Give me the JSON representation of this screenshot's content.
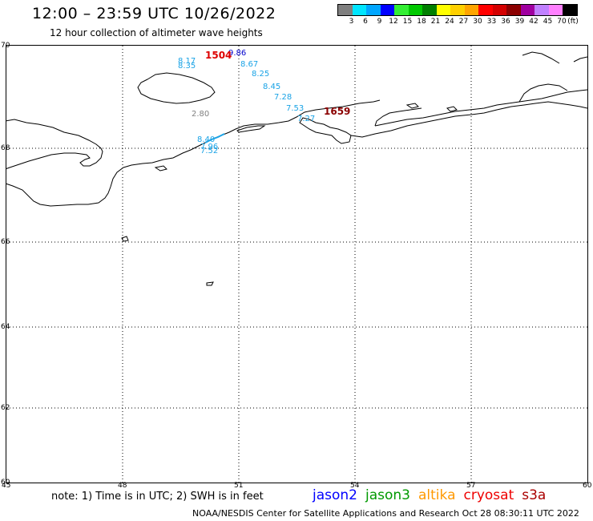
{
  "header": {
    "title": "12:00 – 23:59 UTC 10/26/2022",
    "subtitle": "12 hour collection of altimeter wave heights"
  },
  "legend": {
    "unit": "(ft)",
    "ticks": [
      "3",
      "6",
      "9",
      "12",
      "15",
      "18",
      "21",
      "24",
      "27",
      "30",
      "33",
      "36",
      "39",
      "42",
      "45",
      "70"
    ],
    "colors": [
      "#7f7f7f",
      "#00e5ff",
      "#00a6ff",
      "#0000ff",
      "#33ee33",
      "#00c800",
      "#007f00",
      "#ffff00",
      "#ffd000",
      "#ffa500",
      "#ff0000",
      "#d40000",
      "#8b0000",
      "#a000a0",
      "#c080ff",
      "#ff80ff",
      "#000000"
    ]
  },
  "map": {
    "lat_labels": [
      "70",
      "68",
      "66",
      "64",
      "62",
      "60"
    ],
    "lon_labels": [
      "45",
      "48",
      "51",
      "54",
      "57",
      "60"
    ],
    "observations": [
      {
        "label": "8.17",
        "color": "#1aa3e6"
      },
      {
        "label": "8.35",
        "color": "#1aa3e6"
      },
      {
        "label": "9.86",
        "color": "#0000cc"
      },
      {
        "label": "8.67",
        "color": "#1aa3e6"
      },
      {
        "label": "8.25",
        "color": "#1aa3e6"
      },
      {
        "label": "8.45",
        "color": "#1aa3e6"
      },
      {
        "label": "7.28",
        "color": "#1aa3e6"
      },
      {
        "label": "7.53",
        "color": "#1aa3e6"
      },
      {
        "label": "7.27",
        "color": "#1aa3e6"
      },
      {
        "label": "8.40",
        "color": "#1aa3e6"
      },
      {
        "label": "7.96",
        "color": "#1aa3e6"
      },
      {
        "label": "7.52",
        "color": "#1aa3e6"
      },
      {
        "label": "2.80",
        "color": "#808080"
      }
    ],
    "pass_ids": [
      {
        "label": "1504",
        "color": "#dd0000"
      },
      {
        "label": "1659",
        "color": "#8b0000"
      }
    ]
  },
  "footer": {
    "note": "note: 1) Time is in UTC; 2) SWH is in feet",
    "satellites": [
      {
        "name": "jason2",
        "color": "#0000ff"
      },
      {
        "name": "jason3",
        "color": "#009900"
      },
      {
        "name": "altika",
        "color": "#ff9900"
      },
      {
        "name": "cryosat",
        "color": "#ee0000"
      },
      {
        "name": "s3a",
        "color": "#aa0000"
      }
    ],
    "credit": "NOAA/NESDIS Center for Satellite Applications and Research     Oct 28 08:30:11 UTC 2022"
  }
}
